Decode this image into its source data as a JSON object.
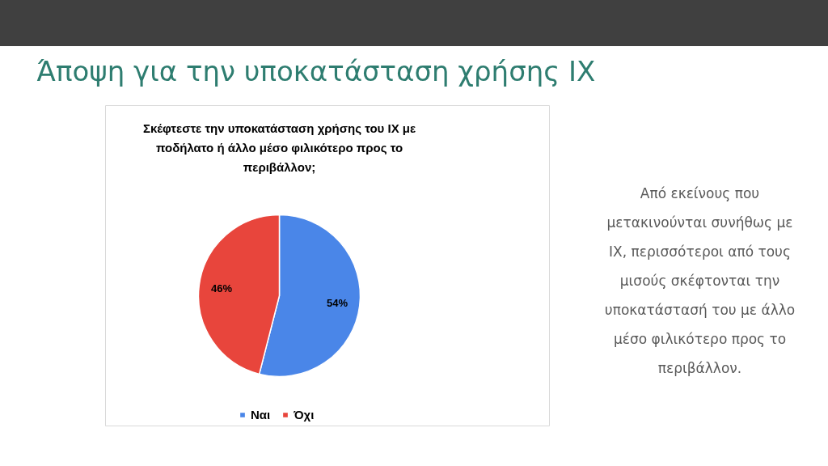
{
  "chart_data": {
    "type": "pie",
    "title": "Άποψη για την υποκατάσταση χρήσης ΙΧ",
    "subtitle": "Σκέφτεστε την υποκατάσταση χρήσης του ΙΧ με ποδήλατο ή άλλο μέσο φιλικότερο προς το περιβάλλον;",
    "categories": [
      "Ναι",
      "Όχι"
    ],
    "values": [
      54,
      46
    ],
    "colors": [
      "#4a86e8",
      "#e8453c"
    ],
    "value_labels": [
      "54%",
      "46%"
    ],
    "legend": "bottom",
    "annotations": [
      "Από εκείνους που μετακινούνται συνήθως με ΙΧ, περισσότεροι από τους μισούς σκέφτονται την υποκατάστασή του με άλλο μέσο φιλικότερο προς το περιβάλλον."
    ]
  }
}
